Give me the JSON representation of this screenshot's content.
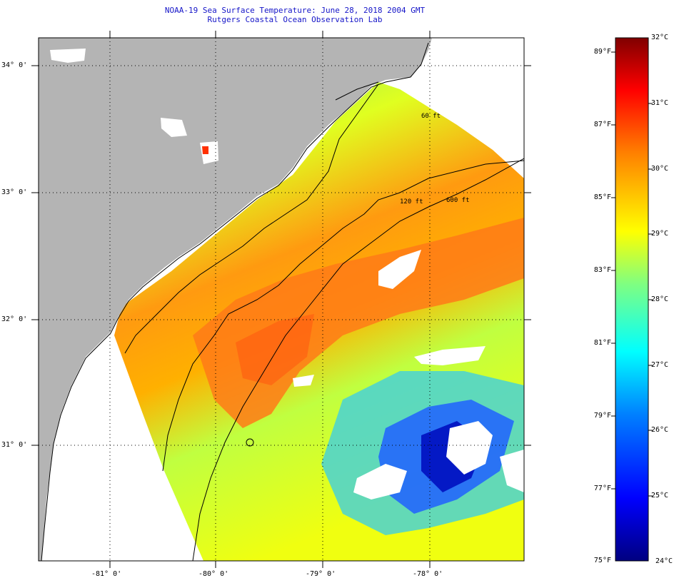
{
  "title_line1": "NOAA-19 Sea Surface Temperature:  June 28, 2018 2004 GMT",
  "title_line2": "Rutgers Coastal Ocean Observation Lab",
  "lat_labels": [
    "34° 0'",
    "33° 0'",
    "32° 0'",
    "31° 0'"
  ],
  "lon_labels": [
    "-81° 0'",
    "-80° 0'",
    "-79° 0'",
    "-78° 0'"
  ],
  "contours": [
    "120 ft",
    "600 ft",
    "60 ft"
  ],
  "colorbar": {
    "fahrenheit": [
      "89°F",
      "87°F",
      "85°F",
      "83°F",
      "81°F",
      "79°F",
      "77°F",
      "75°F"
    ],
    "celsius": [
      "32°C",
      "31°C",
      "30°C",
      "29°C",
      "28°C",
      "27°C",
      "26°C",
      "25°C",
      "24°C"
    ],
    "colors": [
      "#000080",
      "#0000ff",
      "#0080ff",
      "#00ffff",
      "#80ff80",
      "#ffff00",
      "#ff8000",
      "#ff0000",
      "#800000"
    ]
  },
  "colors": {
    "land": "#b4b4b4",
    "title": "#1515c8",
    "cloud": "#ffffff"
  }
}
